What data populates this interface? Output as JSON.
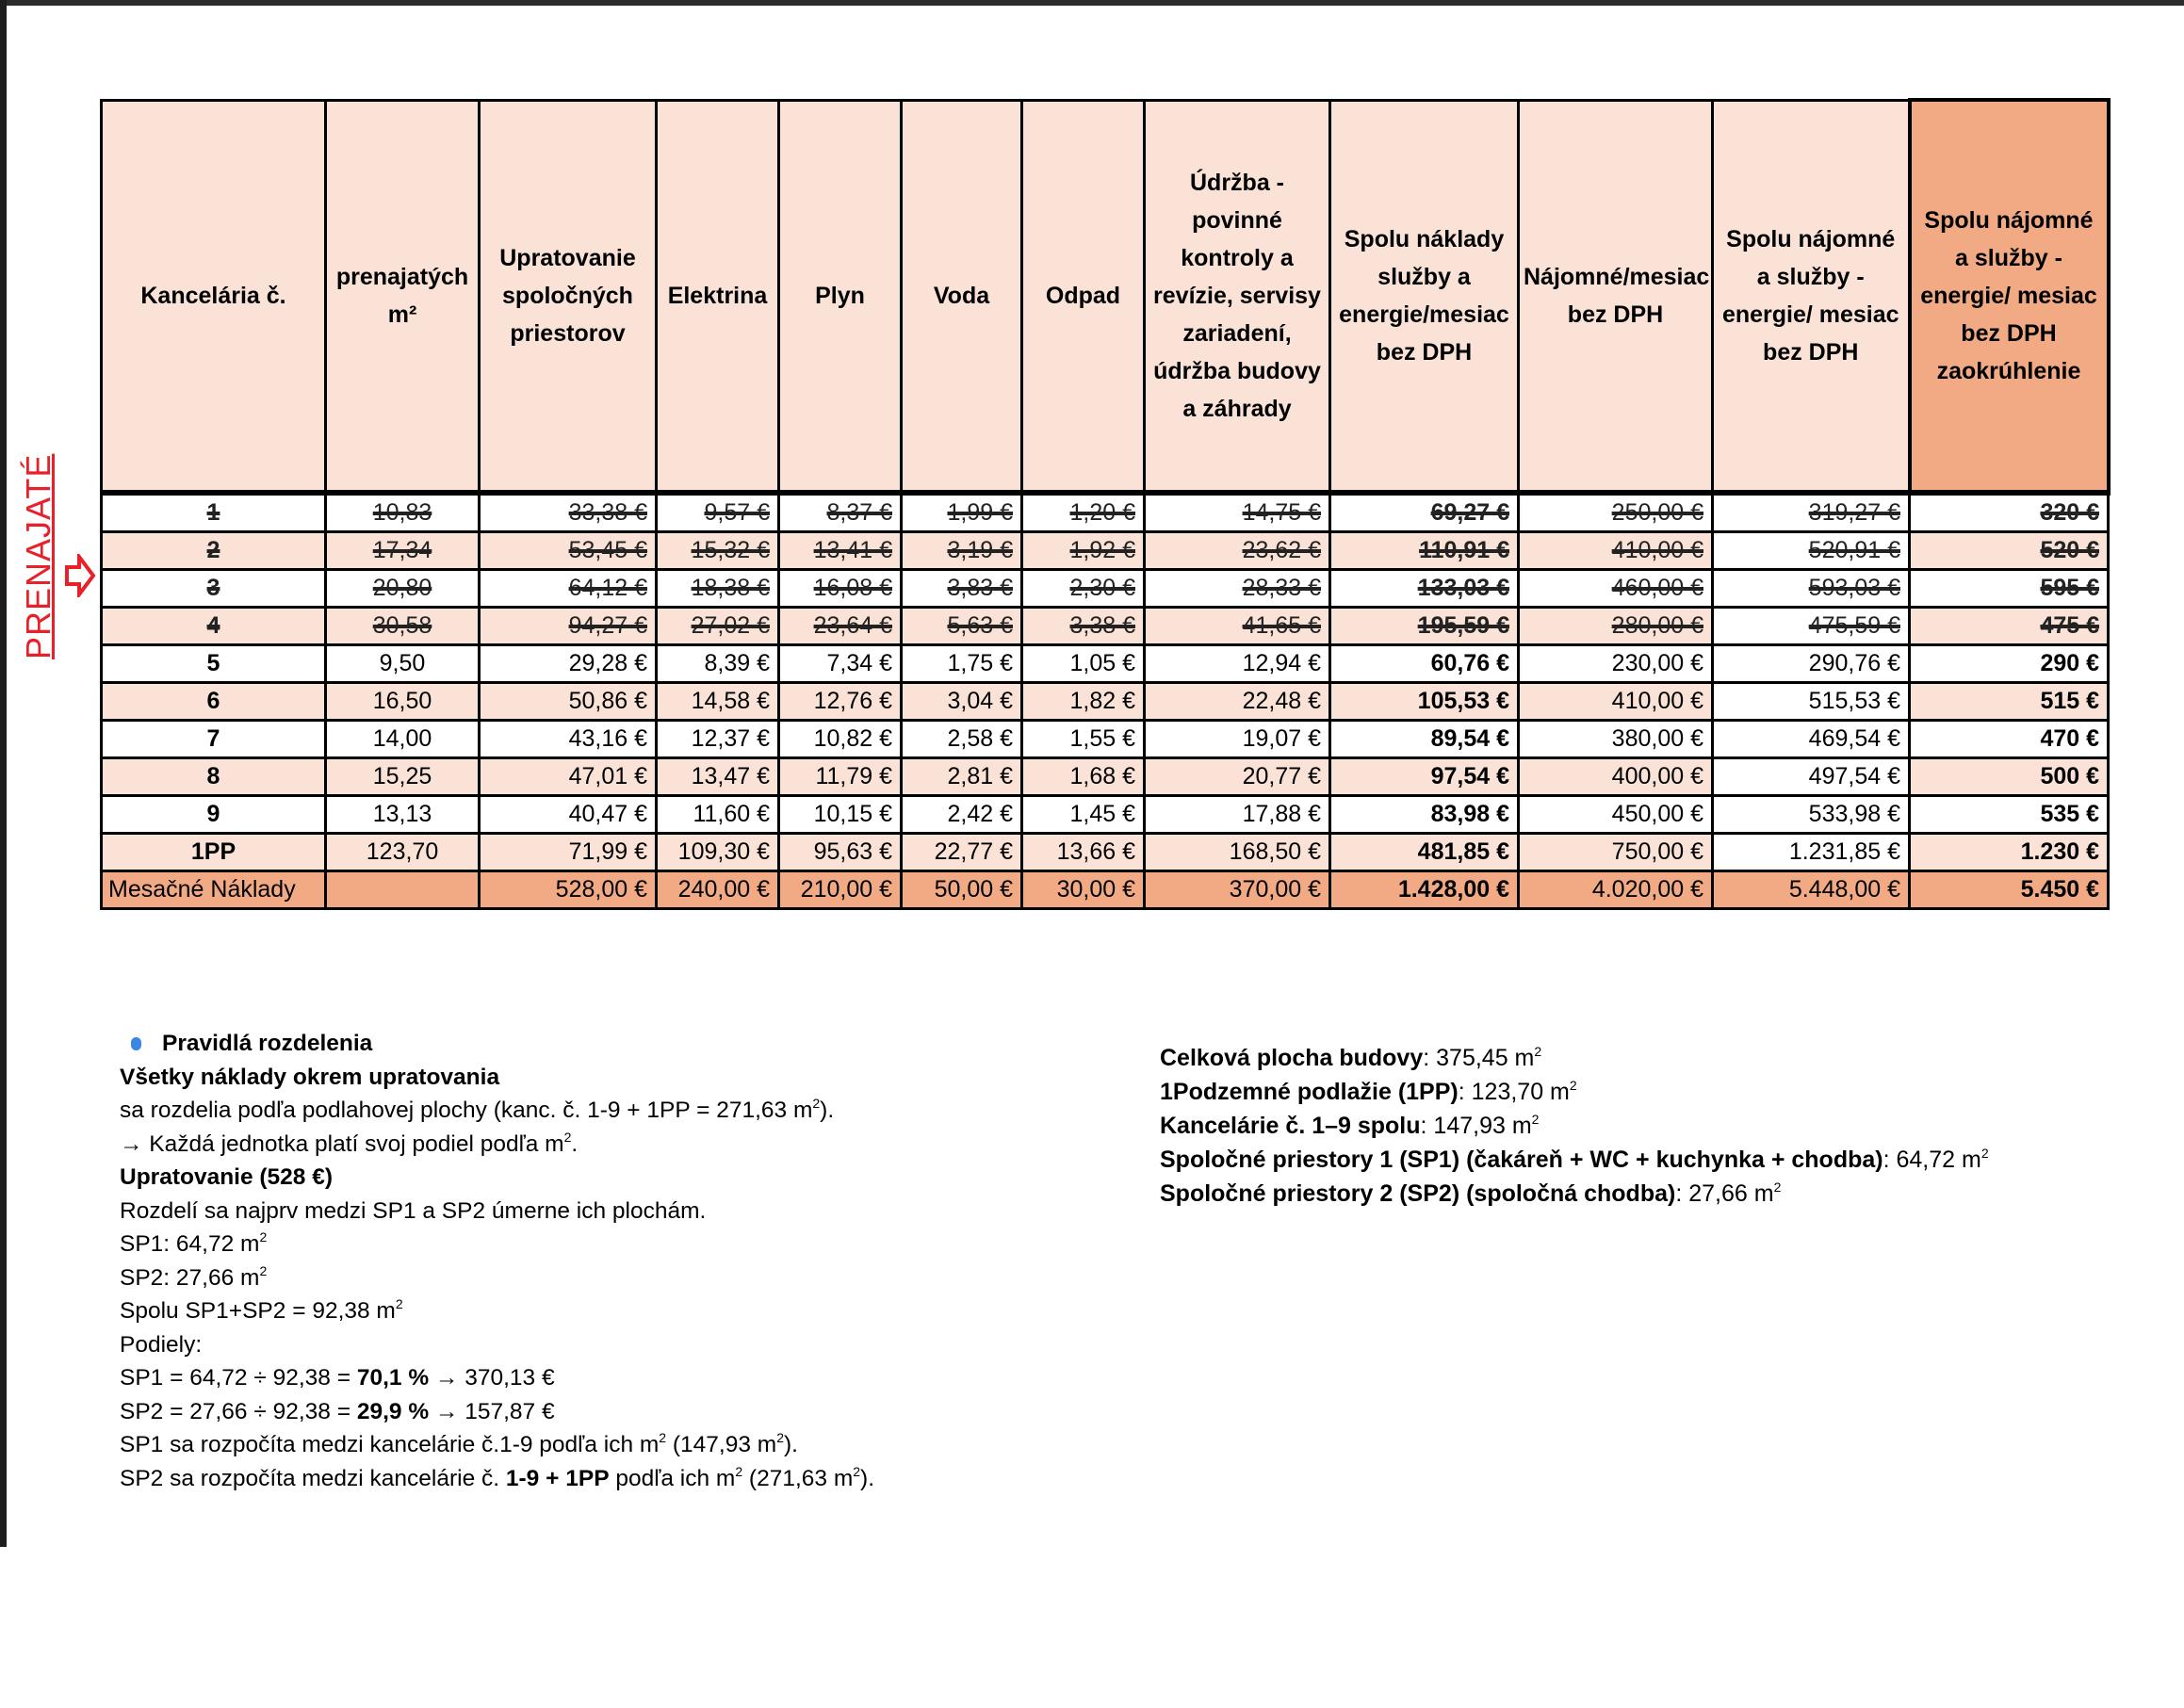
{
  "side_label": "PRENAJATÉ",
  "colors": {
    "header_bg": "#fbe2d6",
    "accent_header": "#f1aa84",
    "total_row": "#f1aa84",
    "side_label": "#e8202a",
    "bullet": "#3a86e0"
  },
  "table": {
    "headers": [
      "Kancelária č.",
      "prenajatých m²",
      "Upratovanie spoločných priestorov",
      "Elektrina",
      "Plyn",
      "Voda",
      "Odpad",
      "Údržba - povinné kontroly a revízie, servisy zariadení, údržba budovy a záhrady",
      "Spolu náklady služby a energie/mesiac bez DPH",
      "Nájomné/mesiac bez DPH",
      "Spolu nájomné a služby - energie/ mesiac bez DPH",
      "Spolu nájomné a služby - energie/ mesiac bez DPH zaokrúhlenie"
    ],
    "rows": [
      {
        "struck": true,
        "cells": [
          "1",
          "10,83",
          "33,38 €",
          "9,57 €",
          "8,37 €",
          "1,99 €",
          "1,20 €",
          "14,75 €",
          "69,27 €",
          "250,00 €",
          "319,27 €",
          "320 €"
        ]
      },
      {
        "struck": true,
        "cells": [
          "2",
          "17,34",
          "53,45 €",
          "15,32 €",
          "13,41 €",
          "3,19 €",
          "1,92 €",
          "23,62 €",
          "110,91 €",
          "410,00 €",
          "520,91 €",
          "520 €"
        ]
      },
      {
        "struck": true,
        "cells": [
          "3",
          "20,80",
          "64,12 €",
          "18,38 €",
          "16,08 €",
          "3,83 €",
          "2,30 €",
          "28,33 €",
          "133,03 €",
          "460,00 €",
          "593,03 €",
          "595 €"
        ]
      },
      {
        "struck": true,
        "cells": [
          "4",
          "30,58",
          "94,27 €",
          "27,02 €",
          "23,64 €",
          "5,63 €",
          "3,38 €",
          "41,65 €",
          "195,59 €",
          "280,00 €",
          "475,59 €",
          "475 €"
        ]
      },
      {
        "struck": false,
        "cells": [
          "5",
          "9,50",
          "29,28 €",
          "8,39 €",
          "7,34 €",
          "1,75 €",
          "1,05 €",
          "12,94 €",
          "60,76 €",
          "230,00 €",
          "290,76 €",
          "290 €"
        ]
      },
      {
        "struck": false,
        "cells": [
          "6",
          "16,50",
          "50,86 €",
          "14,58 €",
          "12,76 €",
          "3,04 €",
          "1,82 €",
          "22,48 €",
          "105,53 €",
          "410,00 €",
          "515,53 €",
          "515 €"
        ]
      },
      {
        "struck": false,
        "cells": [
          "7",
          "14,00",
          "43,16 €",
          "12,37 €",
          "10,82 €",
          "2,58 €",
          "1,55 €",
          "19,07 €",
          "89,54 €",
          "380,00 €",
          "469,54 €",
          "470 €"
        ]
      },
      {
        "struck": false,
        "cells": [
          "8",
          "15,25",
          "47,01 €",
          "13,47 €",
          "11,79 €",
          "2,81 €",
          "1,68 €",
          "20,77 €",
          "97,54 €",
          "400,00 €",
          "497,54 €",
          "500 €"
        ]
      },
      {
        "struck": false,
        "cells": [
          "9",
          "13,13",
          "40,47 €",
          "11,60 €",
          "10,15 €",
          "2,42 €",
          "1,45 €",
          "17,88 €",
          "83,98 €",
          "450,00 €",
          "533,98 €",
          "535 €"
        ]
      },
      {
        "struck": false,
        "cells": [
          "1PP",
          "123,70",
          "71,99 €",
          "109,30 €",
          "95,63 €",
          "22,77 €",
          "13,66 €",
          "168,50 €",
          "481,85 €",
          "750,00 €",
          "1.231,85 €",
          "1.230 €"
        ]
      }
    ],
    "total": [
      "Mesačné Náklady",
      "",
      "528,00 €",
      "240,00 €",
      "210,00 €",
      "50,00 €",
      "30,00 €",
      "370,00 €",
      "1.428,00 €",
      "4.020,00 €",
      "5.448,00 €",
      "5.450 €"
    ]
  },
  "notes": [
    [
      {
        "b": "Pravidlá rozdelenia"
      }
    ],
    [
      {
        "b": "Všetky náklady okrem upratovania"
      }
    ],
    [
      {
        "t": "sa rozdelia podľa podlahovej plochy (kanc. č. 1-9 + 1PP = 271,63 m"
      },
      {
        "sup": "2"
      },
      {
        "t": ")."
      }
    ],
    [
      {
        "t": "→ Každá jednotka platí svoj podiel podľa m"
      },
      {
        "sup": "2"
      },
      {
        "t": "."
      }
    ],
    [
      {
        "b": "Upratovanie (528 €)"
      }
    ],
    [
      {
        "t": "Rozdelí sa najprv medzi SP1 a SP2 úmerne ich plochám."
      }
    ],
    [
      {
        "t": "SP1: 64,72 m"
      },
      {
        "sup": "2"
      }
    ],
    [
      {
        "t": "SP2: 27,66 m"
      },
      {
        "sup": "2"
      }
    ],
    [
      {
        "t": "Spolu SP1+SP2 = 92,38 m"
      },
      {
        "sup": "2"
      }
    ],
    [
      {
        "t": "Podiely:"
      }
    ],
    [
      {
        "t": "SP1 = 64,72 ÷ 92,38 = "
      },
      {
        "b": "70,1 %"
      },
      {
        "t": " → 370,13 €"
      }
    ],
    [
      {
        "t": "SP2 = 27,66 ÷ 92,38 = "
      },
      {
        "b": "29,9 %"
      },
      {
        "t": " → 157,87 €"
      }
    ],
    [
      {
        "t": "SP1 sa rozpočíta medzi kancelárie č.1-9 podľa ich m"
      },
      {
        "sup": "2"
      },
      {
        "t": " (147,93 m"
      },
      {
        "sup": "2"
      },
      {
        "t": ")."
      }
    ],
    [
      {
        "t": "SP2 sa rozpočíta medzi kancelárie č. "
      },
      {
        "b": "1-9 + 1PP"
      },
      {
        "t": " podľa ich m"
      },
      {
        "sup": "2"
      },
      {
        "t": " (271,63 m"
      },
      {
        "sup": "2"
      },
      {
        "t": ")."
      }
    ]
  ],
  "info": [
    [
      {
        "b": "Celková plocha budovy"
      },
      {
        "t": ": 375,45 m"
      },
      {
        "sup": "2"
      }
    ],
    [
      {
        "b": "1Podzemné podlažie (1PP)"
      },
      {
        "t": ": 123,70 m"
      },
      {
        "sup": "2"
      }
    ],
    [
      {
        "b": "Kancelárie č. 1–9 spolu"
      },
      {
        "t": ": 147,93 m"
      },
      {
        "sup": "2"
      }
    ],
    [
      {
        "b": "Spoločné priestory 1 (SP1) (čakáreň + WC + kuchynka + chodba)"
      },
      {
        "t": ": 64,72 m"
      },
      {
        "sup": "2"
      }
    ],
    [
      {
        "b": "Spoločné priestory 2 (SP2) (spoločná chodba)"
      },
      {
        "t": ":  27,66 m"
      },
      {
        "sup": "2"
      }
    ]
  ]
}
